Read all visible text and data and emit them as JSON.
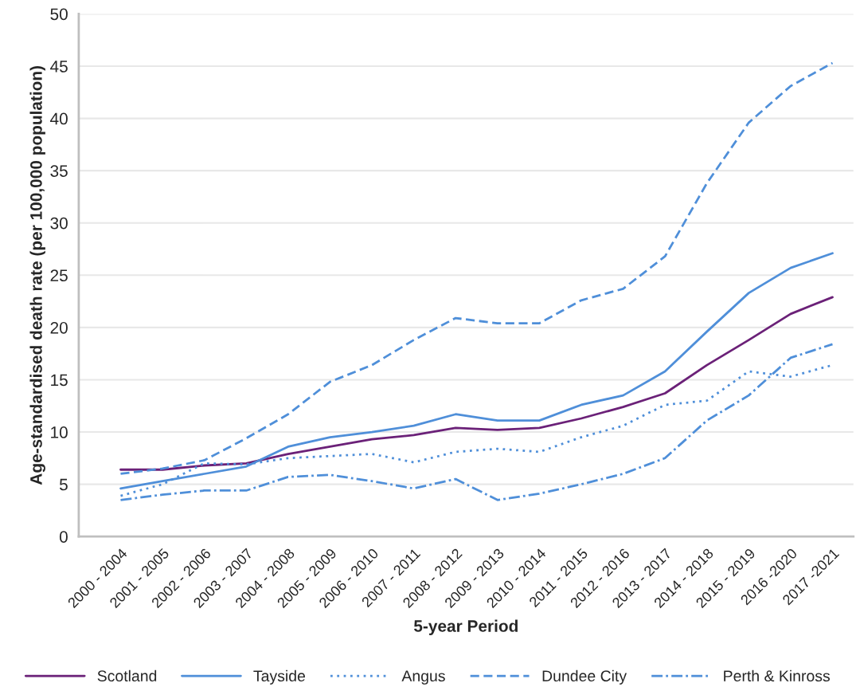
{
  "chart_data": {
    "type": "line",
    "xlabel": "5-year Period",
    "ylabel": "Age-standardised death rate (per 100,000 population)",
    "categories": [
      "2000 - 2004",
      "2001 - 2005",
      "2002 - 2006",
      "2003 - 2007",
      "2004 - 2008",
      "2005 - 2009",
      "2006 - 2010",
      "2007 - 2011",
      "2008 - 2012",
      "2009 - 2013",
      "2010 - 2014",
      "2011 - 2015",
      "2012 - 2016",
      "2013 - 2017",
      "2014 - 2018",
      "2015 - 2019",
      "2016 -2020",
      "2017 -2021"
    ],
    "series": [
      {
        "name": "Scotland",
        "color": "#6b2178",
        "line_style": "solid",
        "values": [
          6.4,
          6.4,
          6.8,
          7.0,
          7.9,
          8.6,
          9.3,
          9.7,
          10.4,
          10.2,
          10.4,
          11.3,
          12.4,
          13.7,
          16.4,
          18.8,
          21.3,
          22.9
        ]
      },
      {
        "name": "Tayside",
        "color": "#4f8fd9",
        "line_style": "solid",
        "values": [
          4.6,
          5.3,
          6.0,
          6.7,
          8.6,
          9.5,
          10.0,
          10.6,
          11.7,
          11.1,
          11.1,
          12.6,
          13.5,
          15.8,
          19.6,
          23.3,
          25.7,
          27.1
        ]
      },
      {
        "name": "Angus",
        "color": "#4f8fd9",
        "line_style": "dotted",
        "values": [
          3.9,
          5.0,
          7.0,
          6.9,
          7.5,
          7.7,
          7.9,
          7.1,
          8.1,
          8.4,
          8.1,
          9.5,
          10.6,
          12.6,
          13.0,
          15.8,
          15.3,
          16.4
        ]
      },
      {
        "name": "Dundee City",
        "color": "#4f8fd9",
        "line_style": "dashed",
        "values": [
          6.0,
          6.5,
          7.3,
          9.4,
          11.7,
          14.8,
          16.4,
          18.8,
          20.9,
          20.4,
          20.4,
          22.6,
          23.7,
          26.8,
          33.8,
          39.6,
          43.1,
          45.3
        ]
      },
      {
        "name": "Perth & Kinross",
        "color": "#4f8fd9",
        "line_style": "dashdot",
        "values": [
          3.5,
          4.0,
          4.4,
          4.4,
          5.7,
          5.9,
          5.3,
          4.6,
          5.5,
          3.5,
          4.1,
          5.0,
          6.0,
          7.5,
          11.1,
          13.5,
          17.1,
          18.4
        ]
      }
    ],
    "ylim": [
      0,
      50
    ],
    "yticks": [
      0,
      5,
      10,
      15,
      20,
      25,
      30,
      35,
      40,
      45,
      50
    ],
    "grid": "y",
    "legend": "bottom",
    "marker": "none"
  }
}
